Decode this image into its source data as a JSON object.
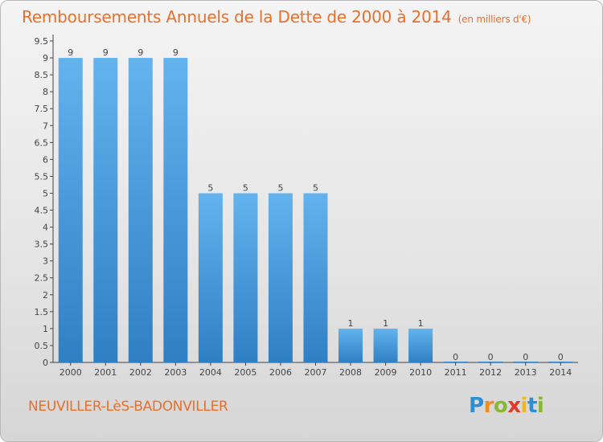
{
  "header": {
    "title": "Remboursements Annuels de la Dette de 2000 à 2014",
    "unit": "(en milliers d'€)"
  },
  "footer": {
    "commune": "NEUVILLER-LèS-BADONVILLER",
    "logo_letters": [
      "P",
      "r",
      "o",
      "x",
      "i",
      "t",
      "i"
    ],
    "logo_colors": [
      "#2a8fd4",
      "#f08c1a",
      "#8ab832",
      "#e03a2a",
      "#f0b81a",
      "#2a8fd4",
      "#8ab832"
    ]
  },
  "colors": {
    "bar_light": "#63b3ee",
    "bar_dark": "#2f7fc4",
    "title": "#e8702a"
  },
  "chart_data": {
    "type": "bar",
    "title": "Remboursements Annuels de la Dette de 2000 à 2014",
    "xlabel": "",
    "ylabel": "",
    "categories": [
      "2000",
      "2001",
      "2002",
      "2003",
      "2004",
      "2005",
      "2006",
      "2007",
      "2008",
      "2009",
      "2010",
      "2011",
      "2012",
      "2013",
      "2014"
    ],
    "values": [
      9,
      9,
      9,
      9,
      5,
      5,
      5,
      5,
      1,
      1,
      1,
      0,
      0,
      0,
      0
    ],
    "value_labels": [
      "9",
      "9",
      "9",
      "9",
      "5",
      "5",
      "5",
      "5",
      "1",
      "1",
      "1",
      "0",
      "0",
      "0",
      "0"
    ],
    "ylim": [
      0,
      9.5
    ],
    "yticks": [
      "0",
      "0.5",
      "1",
      "1.5",
      "2",
      "2.5",
      "3",
      "3.5",
      "4",
      "4.5",
      "5",
      "5.5",
      "6",
      "6.5",
      "7",
      "7.5",
      "8",
      "8.5",
      "9",
      "9.5"
    ],
    "grid": false,
    "legend": "none"
  }
}
